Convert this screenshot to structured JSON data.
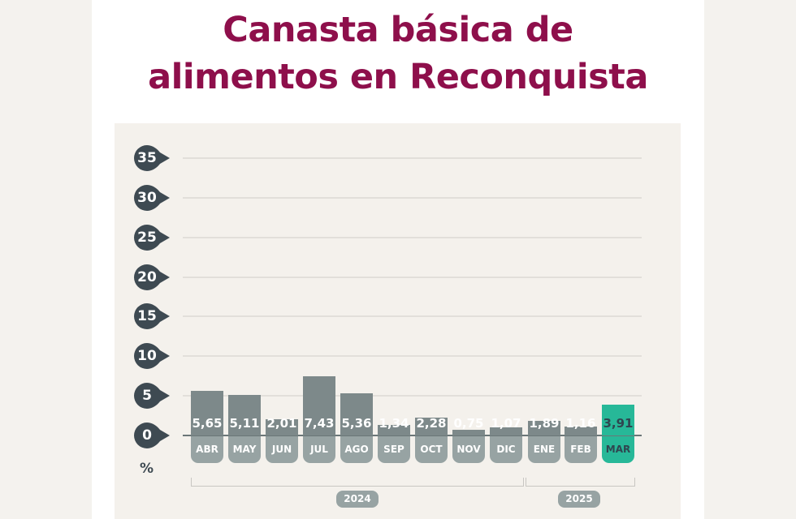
{
  "title_line1": "Canasta básica de",
  "title_line2": "alimentos en Reconquista",
  "unit": "%",
  "years": [
    {
      "label": "2024"
    },
    {
      "label": "2025"
    }
  ],
  "colors": {
    "title": "#8e0f4b",
    "bar": "#7d898a",
    "highlight": "#27b898",
    "tick": "#3e4a52"
  },
  "chart_data": {
    "type": "bar",
    "title": "Canasta básica de alimentos en Reconquista",
    "xlabel": "",
    "ylabel": "%",
    "ylim": [
      0,
      35
    ],
    "yticks": [
      0,
      5,
      10,
      15,
      20,
      25,
      30,
      35
    ],
    "grid": true,
    "categories": [
      "ABR",
      "MAY",
      "JUN",
      "JUL",
      "AGO",
      "SEP",
      "OCT",
      "NOV",
      "DIC",
      "ENE",
      "FEB",
      "MAR"
    ],
    "values": [
      5.65,
      5.11,
      2.01,
      7.43,
      5.36,
      1.34,
      2.28,
      0.75,
      1.07,
      1.89,
      1.16,
      3.91
    ],
    "value_labels": [
      "5,65",
      "5,11",
      "2,01",
      "7,43",
      "5,36",
      "1,34",
      "2,28",
      "0,75",
      "1,07",
      "1,89",
      "1,16",
      "3,91"
    ],
    "groups": [
      {
        "label": "2024",
        "categories": [
          "ABR",
          "MAY",
          "JUN",
          "JUL",
          "AGO",
          "SEP",
          "OCT",
          "NOV",
          "DIC"
        ]
      },
      {
        "label": "2025",
        "categories": [
          "ENE",
          "FEB",
          "MAR"
        ]
      }
    ],
    "highlighted": "MAR"
  }
}
